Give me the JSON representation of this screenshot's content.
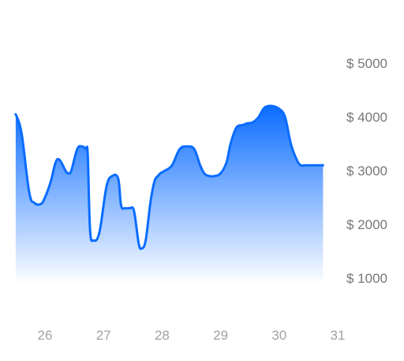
{
  "chart_data": {
    "type": "area",
    "title": "",
    "xlabel": "",
    "ylabel": "",
    "xlim": [
      25.5,
      31
    ],
    "ylim": [
      0,
      5000
    ],
    "grid": false,
    "legend": "none",
    "x_ticks": [
      26,
      27,
      28,
      29,
      30,
      31
    ],
    "x_tick_labels": [
      "26",
      "27",
      "28",
      "29",
      "30",
      "31"
    ],
    "y_ticks": [
      1000,
      2000,
      3000,
      4000,
      5000
    ],
    "y_tick_labels": [
      "$ 1000",
      "$ 2000",
      "$ 3000",
      "$ 4000",
      "$ 5000"
    ],
    "series": [
      {
        "x": [
          25.5,
          25.6,
          25.73,
          25.82,
          25.93,
          26.0,
          26.1,
          26.18,
          26.25,
          26.35,
          26.4,
          26.45,
          26.55,
          26.63,
          26.7,
          26.73,
          26.77,
          26.83,
          26.93,
          27.05,
          27.15,
          27.25,
          27.3,
          27.37,
          27.45,
          27.52,
          27.6,
          27.65,
          27.72,
          27.8,
          27.87,
          27.93,
          27.97,
          28.05,
          28.17,
          28.3,
          28.43,
          28.55,
          28.65,
          28.72,
          28.8,
          28.9,
          29.0,
          29.1,
          29.17,
          29.27,
          29.38,
          29.45,
          29.55,
          29.65,
          29.73,
          29.8,
          29.9,
          30.0,
          30.1,
          30.2,
          30.3,
          30.37,
          30.45,
          30.55,
          30.62,
          30.7,
          30.75
        ],
        "values": [
          4050,
          3700,
          2600,
          2400,
          2380,
          2500,
          2800,
          3150,
          3200,
          3000,
          2950,
          3000,
          3400,
          3450,
          3400,
          3300,
          1900,
          1700,
          1850,
          2700,
          2900,
          2850,
          2350,
          2300,
          2300,
          2250,
          1650,
          1550,
          1700,
          2400,
          2800,
          2900,
          2950,
          3000,
          3100,
          3400,
          3450,
          3400,
          3100,
          2950,
          2900,
          2900,
          2950,
          3150,
          3500,
          3800,
          3850,
          3880,
          3900,
          4000,
          4150,
          4200,
          4200,
          4150,
          4000,
          3500,
          3200,
          3100,
          3100,
          3100,
          3100,
          3100,
          3100
        ],
        "color": "#0a6cff"
      }
    ],
    "colors": {
      "line": "#0a6cff",
      "fill_top": "#0a6cff",
      "fill_bottom": "#ffffff"
    }
  }
}
